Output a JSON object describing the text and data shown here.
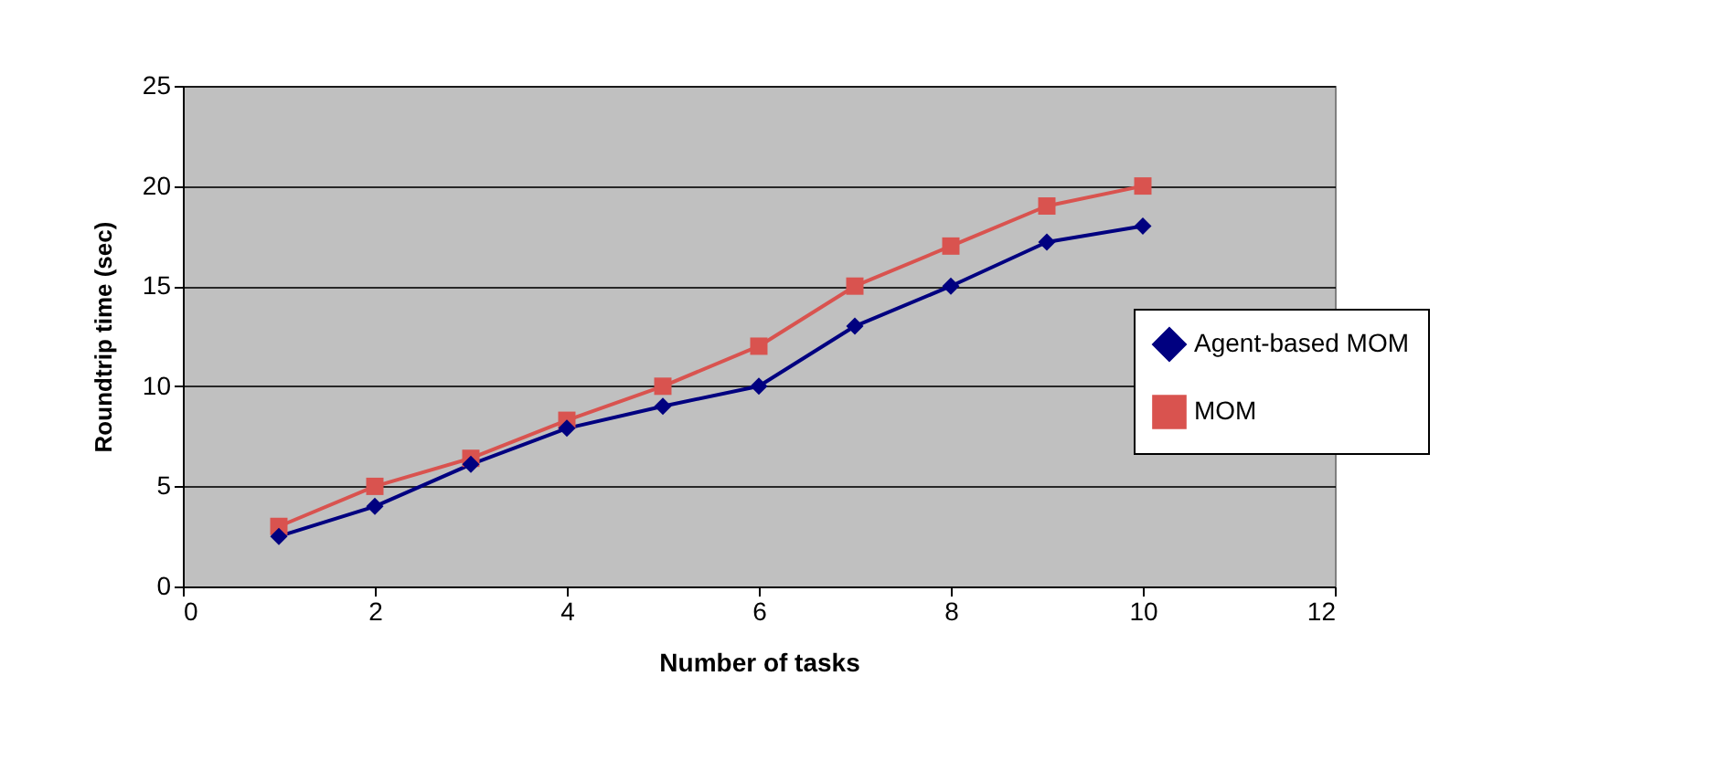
{
  "chart_data": {
    "type": "line",
    "xlabel": "Number of tasks",
    "ylabel": "Roundtrip time (sec)",
    "x": [
      1,
      2,
      3,
      4,
      5,
      6,
      7,
      8,
      9,
      10
    ],
    "series": [
      {
        "name": "Agent-based MOM",
        "color": "#000080",
        "marker": "diamond",
        "values": [
          2.5,
          4,
          6.1,
          7.9,
          9,
          10,
          13,
          15,
          17.2,
          18
        ]
      },
      {
        "name": "MOM",
        "color": "#d9534f",
        "marker": "square",
        "values": [
          3,
          5,
          6.4,
          8.3,
          10,
          12,
          15,
          17,
          19,
          20
        ]
      }
    ],
    "xlim": [
      0,
      12
    ],
    "xticks": [
      0,
      2,
      4,
      6,
      8,
      10,
      12
    ],
    "ylim": [
      0,
      25
    ],
    "yticks": [
      0,
      5,
      10,
      15,
      20,
      25
    ],
    "grid": "y",
    "legend": "right"
  }
}
